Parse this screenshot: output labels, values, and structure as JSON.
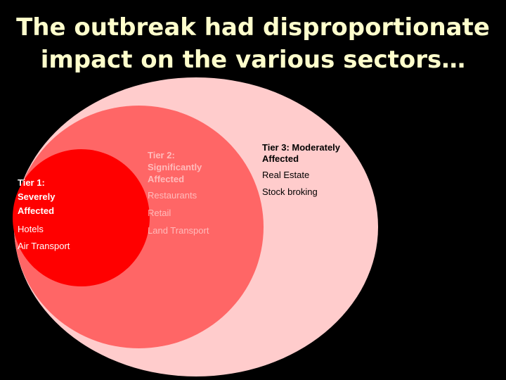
{
  "title": {
    "line1": "The outbreak had disproportionate",
    "line2": "impact on the various sectors…"
  },
  "colors": {
    "background": "#000000",
    "title_text": "#FFFFCC",
    "tier1_fill": "#FF0000",
    "tier2_fill": "#FF6666",
    "tier3_fill": "#FFCCCC"
  },
  "tiers": {
    "tier1": {
      "title_line1": "Tier 1:",
      "title_line2": "Severely",
      "title_line3": "Affected",
      "items": [
        "Hotels",
        "Air Transport"
      ]
    },
    "tier2": {
      "title_line1": "Tier 2:",
      "title_line2": "Significantly",
      "title_line3": "Affected",
      "items": [
        "Restaurants",
        "Retail",
        "Land Transport"
      ]
    },
    "tier3": {
      "title_line1": "Tier 3: Moderately",
      "title_line2": "Affected",
      "items": [
        "Real Estate",
        "Stock broking"
      ]
    }
  }
}
